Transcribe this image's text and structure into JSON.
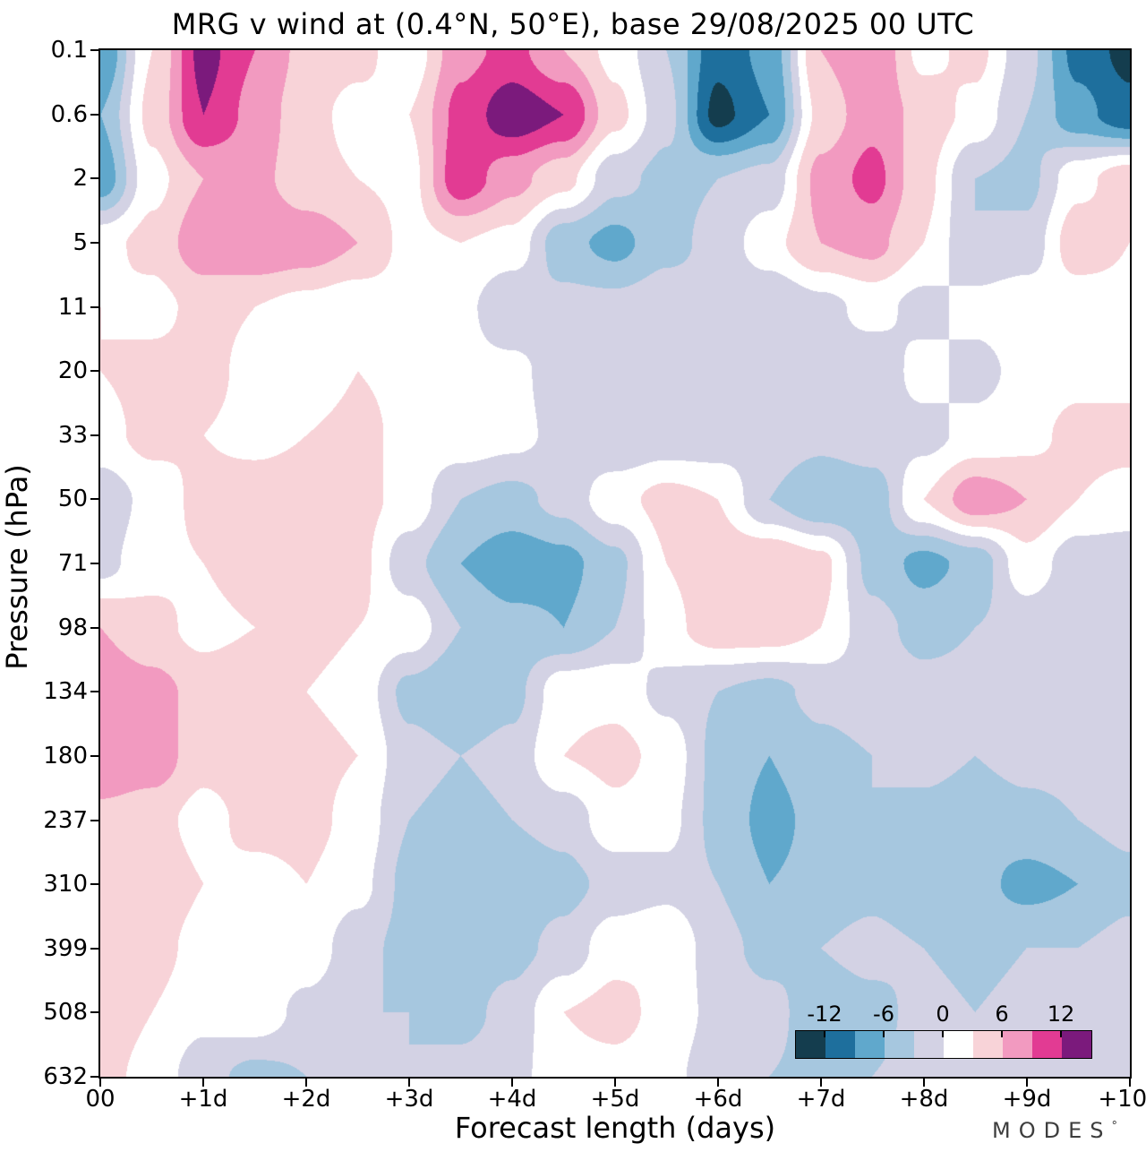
{
  "title": "MRG v wind at (0.4°N, 50°E),  base 29/08/2025  00 UTC",
  "xlabel": "Forecast length (days)",
  "ylabel": "Pressure (hPa)",
  "logo": {
    "text": "MODES",
    "mark": "°"
  },
  "chart_data": {
    "type": "heatmap",
    "title": "MRG v wind at (0.4°N, 50°E), base 29/08/2025 00 UTC",
    "xlabel": "Forecast length (days)",
    "ylabel": "Pressure (hPa)",
    "x_ticks": [
      "00",
      "+1d",
      "+2d",
      "+3d",
      "+4d",
      "+5d",
      "+6d",
      "+7d",
      "+8d",
      "+9d",
      "+10d"
    ],
    "y_ticks": [
      "0.1",
      "0.6",
      "2",
      "5",
      "11",
      "20",
      "33",
      "50",
      "71",
      "98",
      "134",
      "180",
      "237",
      "310",
      "399",
      "508",
      "632"
    ],
    "xlim": [
      0,
      10
    ],
    "y_axis_note": "pressure in hPa, tick levels evenly spaced (log-like axis), top=0.1 bottom=632",
    "x_days": [
      0,
      0.5,
      1,
      1.5,
      2,
      2.5,
      3,
      3.5,
      4,
      4.5,
      5,
      5.5,
      6,
      6.5,
      7,
      7.5,
      8,
      8.5,
      9,
      9.5,
      10
    ],
    "pressure_levels": [
      0.1,
      0.6,
      2,
      5,
      11,
      20,
      33,
      50,
      71,
      98,
      134,
      180,
      237,
      310,
      399,
      508,
      632
    ],
    "values": [
      [
        -9,
        3,
        13,
        9,
        5,
        4,
        1,
        8,
        10,
        6,
        2,
        -3,
        -11,
        -8,
        6,
        9,
        2,
        4,
        -2,
        -10,
        -13
      ],
      [
        -6,
        4,
        12,
        8,
        4,
        2,
        3,
        10,
        14,
        12,
        4,
        -2,
        -13,
        -9,
        4,
        8,
        5,
        2,
        -3,
        -8,
        -11
      ],
      [
        -8,
        2,
        6,
        7,
        4,
        3,
        2,
        11,
        7,
        4,
        -2,
        -4,
        -3,
        -2,
        7,
        10,
        4,
        -3,
        -4,
        2,
        5
      ],
      [
        2,
        4,
        8,
        9,
        8,
        6,
        2,
        3,
        2,
        -5,
        -7,
        -4,
        -2,
        2,
        6,
        7,
        3,
        -3,
        -2,
        5,
        3
      ],
      [
        3,
        2,
        4,
        3,
        2,
        1,
        2,
        1,
        -3,
        -2,
        -2,
        -1,
        -2,
        -3,
        -1,
        1,
        -1,
        1,
        2,
        1,
        2
      ],
      [
        3,
        4,
        4,
        2,
        1,
        3,
        2,
        1,
        1,
        -2,
        -3,
        -2,
        -3,
        -2,
        -1,
        -2,
        1,
        -1,
        1,
        2,
        2
      ],
      [
        2,
        4,
        3,
        2,
        3,
        4,
        2,
        2,
        1,
        -1,
        -3,
        -2,
        -2,
        -1,
        -2,
        -1,
        -1,
        1,
        2,
        4,
        4
      ],
      [
        -2,
        1,
        4,
        5,
        5,
        4,
        2,
        -3,
        -4,
        -2,
        2,
        4,
        3,
        -3,
        -6,
        -5,
        3,
        8,
        6,
        3,
        2
      ],
      [
        -1,
        2,
        3,
        5,
        6,
        4,
        -2,
        -6,
        -8,
        -7,
        -4,
        3,
        5,
        6,
        4,
        -4,
        -7,
        -5,
        2,
        -2,
        -2
      ],
      [
        6,
        4,
        2,
        3,
        4,
        3,
        2,
        -3,
        -5,
        -6,
        -3,
        2,
        5,
        5,
        3,
        -2,
        -4,
        -3,
        -2,
        -3,
        -3
      ],
      [
        8,
        7,
        5,
        6,
        3,
        2,
        -4,
        -6,
        -4,
        2,
        2,
        -1,
        -3,
        -4,
        -2,
        -1,
        -2,
        -2,
        -2,
        -1,
        -1
      ],
      [
        9,
        8,
        4,
        5,
        4,
        3,
        -2,
        -3,
        -2,
        3,
        4,
        2,
        -4,
        -6,
        -4,
        -3,
        -2,
        -3,
        -2,
        -2,
        -2
      ],
      [
        5,
        4,
        2,
        4,
        4,
        2,
        -3,
        -4,
        -3,
        -2,
        2,
        1,
        -4,
        -7,
        -5,
        -3,
        -4,
        -5,
        -4,
        -3,
        -2
      ],
      [
        4,
        5,
        3,
        2,
        3,
        1,
        -4,
        -6,
        -5,
        -4,
        -2,
        -1,
        -3,
        -6,
        -5,
        -4,
        -6,
        -5,
        -7,
        -6,
        -4
      ],
      [
        4,
        4,
        2,
        3,
        2,
        -2,
        -4,
        -5,
        -4,
        -2,
        2,
        3,
        -2,
        -4,
        -3,
        -2,
        -3,
        -4,
        -3,
        -3,
        -2
      ],
      [
        5,
        3,
        1,
        2,
        -1,
        -3,
        -3,
        -4,
        -2,
        3,
        4,
        2,
        -1,
        -2,
        -5,
        -4,
        -2,
        -3,
        -2,
        -2,
        -1
      ],
      [
        4,
        2,
        -2,
        -4,
        -3,
        -2,
        -3,
        -2,
        -1,
        2,
        2,
        1,
        -2,
        -3,
        -4,
        -3,
        -2,
        -2,
        -3,
        -2,
        -1
      ]
    ],
    "colorbar": {
      "tick_labels": [
        "-12",
        "-6",
        "0",
        "6",
        "12"
      ],
      "tick_values": [
        -12,
        -6,
        0,
        6,
        12
      ],
      "levels": [
        -15,
        -12,
        -9,
        -6,
        -3,
        0,
        3,
        6,
        9,
        12,
        15
      ],
      "colors": [
        "#143d4e",
        "#1e6f9d",
        "#60a8cc",
        "#a6c7df",
        "#d3d2e4",
        "#ffffff",
        "#f8d3d8",
        "#f29ac0",
        "#e23b93",
        "#7b1a7c"
      ]
    },
    "legend_position": "inset bottom-right",
    "grid": false
  }
}
